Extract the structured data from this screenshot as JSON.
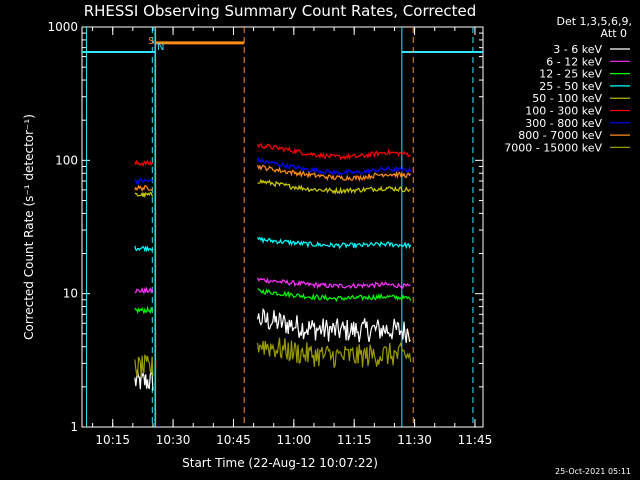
{
  "chart_data": {
    "type": "line",
    "title": "RHESSI Observing Summary Count Rates, Corrected",
    "xlabel": "Start Time (22-Aug-12 10:07:22)",
    "ylabel": "Corrected Count Rate (s⁻¹ detector⁻¹)",
    "yscale": "log",
    "ylim": [
      1,
      1000
    ],
    "xlim": [
      "10:07:22",
      "11:47:00"
    ],
    "x_ticks": [
      "10:15",
      "10:30",
      "10:45",
      "11:00",
      "11:15",
      "11:30",
      "11:45"
    ],
    "y_ticks": [
      "1",
      "10",
      "100",
      "1000"
    ],
    "grid": false,
    "legend_position": "top-right",
    "legend_header": [
      "Det 1,3,5,6,9,",
      "Att 0"
    ],
    "flags": [
      {
        "label": "S",
        "color": "#ff8c1a"
      },
      {
        "label": "N",
        "color": "#33e5ff"
      }
    ],
    "segments": [
      {
        "name": "before-gap",
        "time_range": [
          "10:20:30",
          "10:25:00"
        ]
      },
      {
        "name": "main",
        "time_range": [
          "10:51:00",
          "11:29:00"
        ]
      }
    ],
    "series": [
      {
        "name": "3 - 6 keV",
        "color": "#ffffff",
        "start_level": 2.2,
        "levels": [
          6.5,
          6.0,
          5.5,
          5.3,
          5.3,
          5.4,
          5.2
        ]
      },
      {
        "name": "6 - 12 keV",
        "color": "#ff33ff",
        "start_level": 10.5,
        "levels": [
          12.8,
          12.2,
          11.7,
          11.4,
          11.5,
          11.7,
          11.3
        ]
      },
      {
        "name": "12 - 25 keV",
        "color": "#00ff00",
        "start_level": 7.5,
        "levels": [
          10.5,
          10.0,
          9.5,
          9.2,
          9.3,
          9.5,
          9.2
        ]
      },
      {
        "name": "25 - 50 keV",
        "color": "#00ffff",
        "start_level": 22,
        "levels": [
          25.5,
          24.5,
          23.5,
          23.0,
          23.0,
          23.5,
          23.0
        ]
      },
      {
        "name": "50 - 100 keV",
        "color": "#cccc00",
        "start_level": 55,
        "levels": [
          70,
          65,
          61,
          59,
          60,
          62,
          60
        ]
      },
      {
        "name": "100 - 300 keV",
        "color": "#ff0000",
        "start_level": 95,
        "levels": [
          130,
          122,
          112,
          106,
          107,
          115,
          111
        ]
      },
      {
        "name": "300 - 800 keV",
        "color": "#0000ff",
        "start_level": 70,
        "levels": [
          100,
          92,
          85,
          81,
          81,
          86,
          84
        ]
      },
      {
        "name": "800 - 7000 keV",
        "color": "#ff8c1a",
        "start_level": 62,
        "levels": [
          90,
          83,
          78,
          74,
          74,
          79,
          77
        ]
      },
      {
        "name": "7000 - 15000 keV",
        "color": "#999900",
        "start_level": 2.8,
        "levels": [
          4.2,
          3.8,
          3.5,
          3.4,
          3.4,
          3.5,
          3.4
        ]
      }
    ]
  },
  "timestamp": "25-Oct-2021 05:11"
}
